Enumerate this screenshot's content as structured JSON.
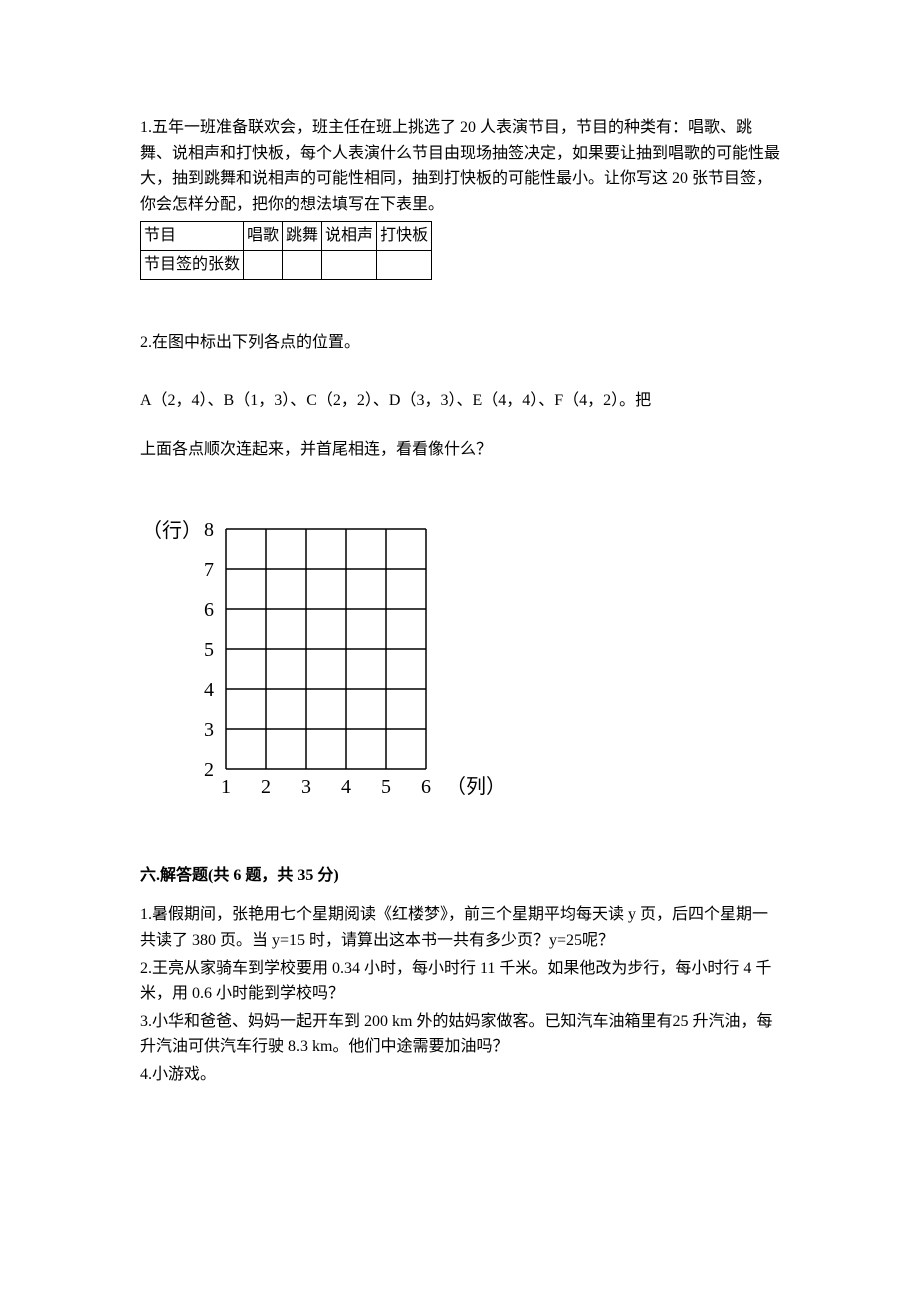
{
  "q1": {
    "text": "1.五年一班准备联欢会，班主任在班上挑选了 20 人表演节目，节目的种类有：唱歌、跳舞、说相声和打快板，每个人表演什么节目由现场抽签决定，如果要让抽到唱歌的可能性最大，抽到跳舞和说相声的可能性相同，抽到打快板的可能性最小。让你写这 20 张节目签，你会怎样分配，把你的想法填写在下表里。",
    "table": {
      "row1_label": "节目",
      "headers": [
        "唱歌",
        "跳舞",
        "说相声",
        "打快板"
      ],
      "row2_label": "节目签的张数",
      "cells": [
        "",
        "",
        "",
        ""
      ]
    }
  },
  "q2": {
    "intro": "2.在图中标出下列各点的位置。",
    "points_line": "A（2，4）、B（1，3）、C（2，2）、D（3，3）、E（4，4）、F（4，2）。把",
    "followup": "上面各点顺次连起来，并首尾相连，看看像什么？",
    "grid": {
      "y_label": "（行）",
      "x_label": "（列）",
      "y_ticks": [
        "8",
        "7",
        "6",
        "5",
        "4",
        "3",
        "2"
      ],
      "x_ticks": [
        "1",
        "2",
        "3",
        "4",
        "5",
        "6"
      ],
      "cell_size": 40,
      "cols": 5,
      "rows": 6,
      "grid_color": "#000000",
      "line_width": 1.5
    }
  },
  "section6": {
    "heading": "六.解答题(共 6 题，共 35 分)",
    "items": [
      "1.暑假期间，张艳用七个星期阅读《红楼梦》，前三个星期平均每天读 y 页，后四个星期一共读了 380 页。当 y=15 时，请算出这本书一共有多少页？y=25呢？",
      "2.王亮从家骑车到学校要用 0.34 小时，每小时行 11 千米。如果他改为步行，每小时行 4 千米，用 0.6 小时能到学校吗？",
      "3.小华和爸爸、妈妈一起开车到 200 km 外的姑妈家做客。已知汽车油箱里有25 升汽油，每升汽油可供汽车行驶 8.3 km。他们中途需要加油吗？",
      "4.小游戏。"
    ]
  }
}
